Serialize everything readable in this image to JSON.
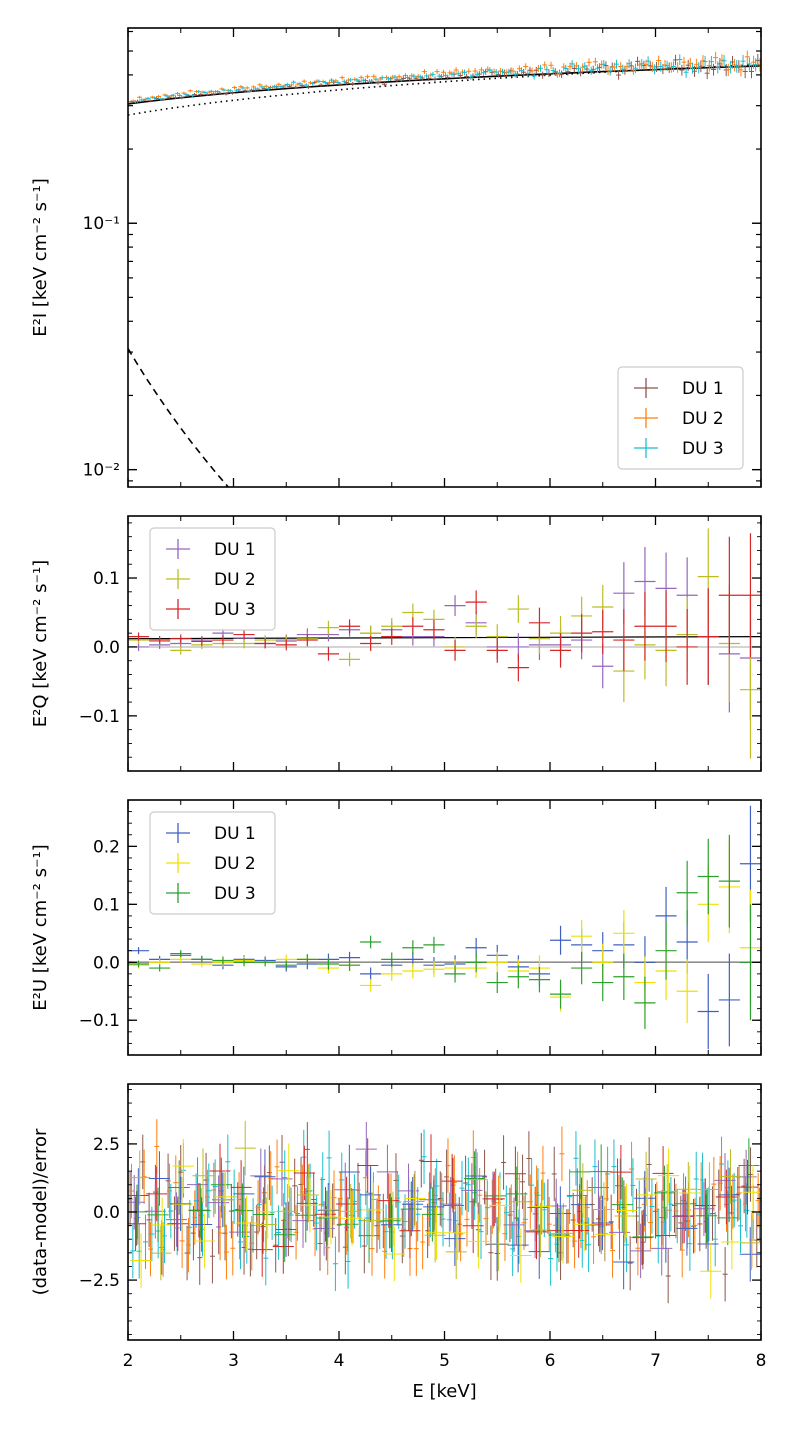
{
  "chart_data": [
    {
      "type": "scatter",
      "panel": "intensity",
      "ylabel": "E²I  [keV cm⁻² s⁻¹]",
      "yscale": "log",
      "xlim": [
        2,
        8
      ],
      "ylim": [
        0.0085,
        0.62
      ],
      "yticks": [
        {
          "value": 0.1,
          "label": "10⁻¹"
        },
        {
          "value": 0.01,
          "label": "10⁻²"
        }
      ],
      "legend": {
        "location": "lower-right",
        "entries": [
          "DU 1",
          "DU 2",
          "DU 3"
        ]
      },
      "series": [
        {
          "name": "DU 1",
          "color": "#8c564b",
          "model": "powerlaw",
          "y_at_2keV": 0.307,
          "y_at_8keV": 0.445,
          "scatter": 0.045,
          "marker_step": 0.06
        },
        {
          "name": "DU 2",
          "color": "#ff7f0e",
          "model": "powerlaw",
          "y_at_2keV": 0.315,
          "y_at_8keV": 0.46,
          "scatter": 0.045,
          "marker_step": 0.06
        },
        {
          "name": "DU 3",
          "color": "#17becf",
          "model": "powerlaw",
          "y_at_2keV": 0.312,
          "y_at_8keV": 0.452,
          "scatter": 0.045,
          "marker_step": 0.06
        }
      ],
      "model_lines": [
        {
          "style": "solid",
          "x": [
            2,
            8
          ],
          "y": [
            0.305,
            0.435
          ]
        },
        {
          "style": "dotted",
          "x": [
            2,
            8
          ],
          "y": [
            0.275,
            0.44
          ]
        },
        {
          "style": "dashed",
          "x": [
            2,
            2.95
          ],
          "y": [
            0.031,
            0.0085
          ]
        }
      ]
    },
    {
      "type": "scatter",
      "panel": "Q",
      "ylabel": "E²Q  [keV cm⁻² s⁻¹]",
      "xlim": [
        2,
        8
      ],
      "ylim": [
        -0.18,
        0.19
      ],
      "yticks": [
        {
          "value": 0.1,
          "label": "0.1"
        },
        {
          "value": 0.0,
          "label": "0.0"
        },
        {
          "value": -0.1,
          "label": "−0.1"
        }
      ],
      "legend": {
        "location": "top-left",
        "entries": [
          "DU 1",
          "DU 2",
          "DU 3"
        ]
      },
      "model_lines": [
        {
          "style": "solid",
          "color": "#000000",
          "x": [
            2,
            8
          ],
          "y": [
            0.012,
            0.015
          ]
        },
        {
          "style": "solid",
          "color": "#aaaaaa",
          "x": [
            2,
            8
          ],
          "y": [
            0.0,
            0.0
          ]
        }
      ],
      "series": [
        {
          "name": "DU 1",
          "color": "#9467bd",
          "x": [
            2.1,
            2.3,
            2.5,
            2.7,
            2.9,
            3.1,
            3.3,
            3.5,
            3.7,
            3.9,
            4.1,
            4.3,
            4.5,
            4.7,
            4.9,
            5.1,
            5.3,
            5.5,
            5.7,
            5.9,
            6.1,
            6.3,
            6.5,
            6.7,
            6.9,
            7.1,
            7.3,
            7.5,
            7.7,
            7.9
          ],
          "y": [
            0.0,
            0.003,
            0.005,
            0.01,
            0.02,
            0.013,
            0.005,
            0.01,
            0.018,
            0.018,
            0.025,
            0.02,
            0.025,
            0.015,
            0.015,
            0.06,
            0.035,
            0.0,
            0.0,
            0.003,
            0.003,
            0.01,
            -0.028,
            0.078,
            0.095,
            0.085,
            0.075,
            0.015,
            -0.01,
            -0.016
          ],
          "yerr": [
            0.006,
            0.006,
            0.006,
            0.006,
            0.007,
            0.007,
            0.007,
            0.008,
            0.009,
            0.01,
            0.01,
            0.011,
            0.012,
            0.013,
            0.014,
            0.015,
            0.017,
            0.018,
            0.02,
            0.022,
            0.025,
            0.028,
            0.032,
            0.045,
            0.05,
            0.052,
            0.055,
            0.07,
            0.085,
            0.09
          ]
        },
        {
          "name": "DU 2",
          "color": "#bcbd22",
          "x": [
            2.1,
            2.3,
            2.5,
            2.7,
            2.9,
            3.1,
            3.3,
            3.5,
            3.7,
            3.9,
            4.1,
            4.3,
            4.5,
            4.7,
            4.9,
            5.1,
            5.3,
            5.5,
            5.7,
            5.9,
            6.1,
            6.3,
            6.5,
            6.7,
            6.9,
            7.1,
            7.3,
            7.5,
            7.7,
            7.9
          ],
          "y": [
            0.01,
            0.008,
            -0.005,
            0.003,
            0.005,
            0.005,
            0.01,
            0.008,
            0.012,
            0.028,
            -0.018,
            0.02,
            0.03,
            0.05,
            0.04,
            0.0,
            0.03,
            0.015,
            0.055,
            0.012,
            0.02,
            0.045,
            0.058,
            -0.035,
            0.003,
            -0.005,
            0.018,
            0.102,
            0.005,
            -0.062
          ],
          "yerr": [
            0.006,
            0.006,
            0.006,
            0.006,
            0.007,
            0.007,
            0.007,
            0.008,
            0.009,
            0.01,
            0.01,
            0.011,
            0.012,
            0.013,
            0.014,
            0.015,
            0.017,
            0.018,
            0.02,
            0.022,
            0.025,
            0.028,
            0.032,
            0.045,
            0.05,
            0.052,
            0.055,
            0.07,
            0.085,
            0.1
          ]
        },
        {
          "name": "DU 3",
          "color": "#d62728",
          "x": [
            2.1,
            2.3,
            2.5,
            2.7,
            2.9,
            3.1,
            3.3,
            3.5,
            3.7,
            3.9,
            4.1,
            4.3,
            4.5,
            4.7,
            4.9,
            5.1,
            5.3,
            5.5,
            5.7,
            5.9,
            6.1,
            6.3,
            6.5,
            6.7,
            6.9,
            7.1,
            7.3,
            7.5,
            7.7,
            7.9
          ],
          "y": [
            0.015,
            0.01,
            0.012,
            0.008,
            0.01,
            0.018,
            0.005,
            0.003,
            0.01,
            -0.01,
            0.03,
            0.005,
            0.015,
            0.03,
            0.025,
            -0.005,
            0.065,
            -0.005,
            -0.03,
            0.035,
            -0.005,
            0.02,
            0.022,
            0.01,
            0.03,
            0.03,
            0.0,
            0.015,
            0.075,
            0.075
          ]
        },
        {
          "name": "",
          "color": "#d62728",
          "hidden": true
        }
      ]
    },
    {
      "type": "scatter",
      "panel": "U",
      "ylabel": "E²U  [keV cm⁻² s⁻¹]",
      "xlim": [
        2,
        8
      ],
      "ylim": [
        -0.16,
        0.28
      ],
      "yticks": [
        {
          "value": 0.2,
          "label": "0.2"
        },
        {
          "value": 0.1,
          "label": "0.1"
        },
        {
          "value": 0.0,
          "label": "0.0"
        },
        {
          "value": -0.1,
          "label": "−0.1"
        }
      ],
      "legend": {
        "location": "top-left",
        "entries": [
          "DU 1",
          "DU 2",
          "DU 3"
        ]
      },
      "model_lines": [
        {
          "style": "solid",
          "color": "#000000",
          "x": [
            2,
            8
          ],
          "y": [
            0.0,
            0.0
          ]
        },
        {
          "style": "solid",
          "color": "#aaaaaa",
          "x": [
            2,
            8
          ],
          "y": [
            0.0,
            0.0
          ]
        }
      ],
      "series": [
        {
          "name": "DU 1",
          "color": "#4060c0",
          "x": [
            2.1,
            2.3,
            2.5,
            2.7,
            2.9,
            3.1,
            3.3,
            3.5,
            3.7,
            3.9,
            4.1,
            4.3,
            4.5,
            4.7,
            4.9,
            5.1,
            5.3,
            5.5,
            5.7,
            5.9,
            6.1,
            6.3,
            6.5,
            6.7,
            6.9,
            7.1,
            7.3,
            7.5,
            7.7,
            7.9
          ],
          "y": [
            0.02,
            0.005,
            0.012,
            0.005,
            -0.005,
            0.005,
            0.003,
            -0.008,
            -0.003,
            0.005,
            0.008,
            -0.02,
            -0.005,
            0.005,
            -0.005,
            -0.003,
            0.025,
            0.012,
            -0.008,
            -0.02,
            0.038,
            0.03,
            0.02,
            0.03,
            0.0,
            0.08,
            0.035,
            -0.085,
            -0.065,
            0.17
          ],
          "yerr": [
            0.006,
            0.006,
            0.006,
            0.006,
            0.007,
            0.007,
            0.007,
            0.008,
            0.009,
            0.01,
            0.01,
            0.011,
            0.012,
            0.013,
            0.014,
            0.015,
            0.017,
            0.018,
            0.02,
            0.022,
            0.025,
            0.028,
            0.032,
            0.04,
            0.045,
            0.05,
            0.055,
            0.065,
            0.08,
            0.1
          ]
        },
        {
          "name": "DU 2",
          "color": "#f0e000",
          "x": [
            2.1,
            2.3,
            2.5,
            2.7,
            2.9,
            3.1,
            3.3,
            3.5,
            3.7,
            3.9,
            4.1,
            4.3,
            4.5,
            4.7,
            4.9,
            5.1,
            5.3,
            5.5,
            5.7,
            5.9,
            6.1,
            6.3,
            6.5,
            6.7,
            6.9,
            7.1,
            7.3,
            7.5,
            7.7,
            7.9
          ],
          "y": [
            -0.005,
            0.0,
            0.005,
            -0.003,
            0.0,
            0.003,
            0.0,
            0.005,
            0.005,
            -0.01,
            -0.005,
            -0.04,
            -0.02,
            -0.015,
            -0.012,
            -0.01,
            -0.01,
            0.0,
            -0.015,
            -0.01,
            -0.06,
            0.045,
            0.0,
            0.05,
            -0.035,
            -0.015,
            -0.05,
            0.1,
            0.13,
            0.025
          ],
          "yerr": [
            0.006,
            0.006,
            0.006,
            0.006,
            0.007,
            0.007,
            0.007,
            0.008,
            0.009,
            0.01,
            0.01,
            0.011,
            0.012,
            0.013,
            0.014,
            0.015,
            0.017,
            0.018,
            0.02,
            0.022,
            0.025,
            0.028,
            0.032,
            0.04,
            0.045,
            0.05,
            0.055,
            0.065,
            0.08,
            0.1
          ]
        },
        {
          "name": "DU 3",
          "color": "#2ca02c",
          "x": [
            2.1,
            2.3,
            2.5,
            2.7,
            2.9,
            3.1,
            3.3,
            3.5,
            3.7,
            3.9,
            4.1,
            4.3,
            4.5,
            4.7,
            4.9,
            5.1,
            5.3,
            5.5,
            5.7,
            5.9,
            6.1,
            6.3,
            6.5,
            6.7,
            6.9,
            7.1,
            7.3,
            7.5,
            7.7,
            7.9
          ],
          "y": [
            -0.003,
            -0.01,
            0.015,
            0.005,
            0.003,
            0.0,
            0.0,
            -0.005,
            0.005,
            -0.003,
            -0.005,
            0.035,
            0.005,
            0.025,
            0.03,
            -0.02,
            0.0,
            -0.035,
            -0.025,
            -0.03,
            -0.055,
            -0.01,
            -0.035,
            -0.025,
            -0.07,
            0.02,
            0.12,
            0.148,
            0.14,
            0.0
          ],
          "yerr": [
            0.006,
            0.006,
            0.006,
            0.006,
            0.007,
            0.007,
            0.007,
            0.008,
            0.009,
            0.01,
            0.01,
            0.011,
            0.012,
            0.013,
            0.014,
            0.015,
            0.017,
            0.018,
            0.02,
            0.022,
            0.025,
            0.028,
            0.032,
            0.04,
            0.045,
            0.05,
            0.055,
            0.065,
            0.08,
            0.1
          ]
        }
      ]
    },
    {
      "type": "scatter",
      "panel": "residuals",
      "ylabel": "(data-model)/error",
      "xlabel": "E  [keV]",
      "xlim": [
        2,
        8
      ],
      "ylim": [
        -4.7,
        4.7
      ],
      "xticks": [
        2,
        3,
        4,
        5,
        6,
        7,
        8
      ],
      "yticks": [
        {
          "value": 2.5,
          "label": "2.5"
        },
        {
          "value": 0.0,
          "label": "0.0"
        },
        {
          "value": -2.5,
          "label": "−2.5"
        }
      ],
      "series": [
        {
          "name": "",
          "color": "#8c564b",
          "x_step": 0.06,
          "spread": 1.0
        },
        {
          "name": "",
          "color": "#ff7f0e",
          "x_step": 0.06,
          "spread": 1.0
        },
        {
          "name": "",
          "color": "#17becf",
          "x_step": 0.06,
          "spread": 1.0
        },
        {
          "name": "",
          "color": "#9467bd",
          "x_step": 0.2,
          "spread": 1.0
        },
        {
          "name": "",
          "color": "#d62728",
          "x_step": 0.2,
          "spread": 1.0
        },
        {
          "name": "",
          "color": "#2ca02c",
          "x_step": 0.2,
          "spread": 1.0
        },
        {
          "name": "",
          "color": "#4060c0",
          "x_step": 0.2,
          "spread": 1.0
        },
        {
          "name": "",
          "color": "#bcbd22",
          "x_step": 0.2,
          "spread": 1.0
        },
        {
          "name": "",
          "color": "#f0e000",
          "x_step": 0.2,
          "spread": 1.0
        }
      ]
    }
  ]
}
